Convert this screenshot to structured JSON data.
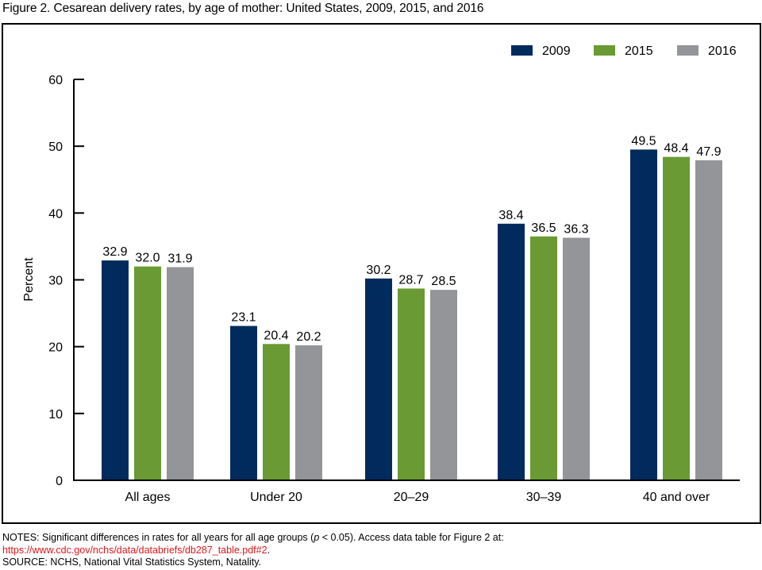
{
  "figure": {
    "title": "Figure 2. Cesarean delivery rates, by age of mother: United States, 2009, 2015, and 2016"
  },
  "notes": {
    "line1_prefix": "NOTES: Significant differences in rates for all years for all age groups (",
    "line1_italic": "p",
    "line1_suffix": " < 0.05). Access data table for Figure 2 at:",
    "link": "https://www.cdc.gov/nchs/data/databriefs/db287_table.pdf#2",
    "link_suffix": ".",
    "source": "SOURCE: NCHS, National Vital Statistics System, Natality."
  },
  "chart_data": {
    "type": "bar",
    "title": "Cesarean delivery rates, by age of mother: United States, 2009, 2015, and 2016",
    "xlabel": "",
    "ylabel": "Percent",
    "ylim": [
      0,
      60
    ],
    "yticks": [
      0,
      10,
      20,
      30,
      40,
      50,
      60
    ],
    "grid": false,
    "legend_position": "top-right",
    "categories": [
      "All ages",
      "Under 20",
      "20–29",
      "30–39",
      "40 and over"
    ],
    "series": [
      {
        "name": "2009",
        "color": "#002b5c",
        "values": [
          32.9,
          23.1,
          30.2,
          38.4,
          49.5
        ]
      },
      {
        "name": "2015",
        "color": "#6a9a33",
        "values": [
          32.0,
          20.4,
          28.7,
          36.5,
          48.4
        ]
      },
      {
        "name": "2016",
        "color": "#939598",
        "values": [
          31.9,
          20.2,
          28.5,
          36.3,
          47.9
        ]
      }
    ],
    "data_labels": [
      [
        "32.9",
        "23.1",
        "30.2",
        "38.4",
        "49.5"
      ],
      [
        "32.0",
        "20.4",
        "28.7",
        "36.5",
        "48.4"
      ],
      [
        "31.9",
        "20.2",
        "28.5",
        "36.3",
        "47.9"
      ]
    ]
  }
}
